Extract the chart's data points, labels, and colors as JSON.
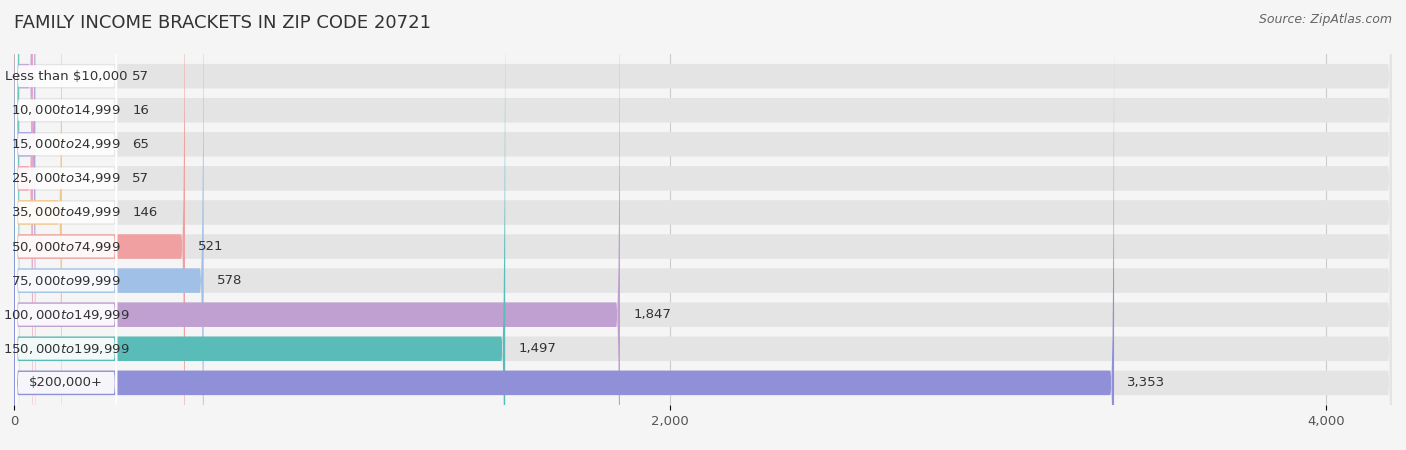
{
  "title": "FAMILY INCOME BRACKETS IN ZIP CODE 20721",
  "source": "Source: ZipAtlas.com",
  "categories": [
    "Less than $10,000",
    "$10,000 to $14,999",
    "$15,000 to $24,999",
    "$25,000 to $34,999",
    "$35,000 to $49,999",
    "$50,000 to $74,999",
    "$75,000 to $99,999",
    "$100,000 to $149,999",
    "$150,000 to $199,999",
    "$200,000+"
  ],
  "values": [
    57,
    16,
    65,
    57,
    146,
    521,
    578,
    1847,
    1497,
    3353
  ],
  "bar_colors": [
    "#c9a8d4",
    "#6ec8c4",
    "#a8a8e0",
    "#f5a0b5",
    "#f5c88a",
    "#f0a0a0",
    "#a0c0e8",
    "#c0a0d0",
    "#5abcb8",
    "#9090d8"
  ],
  "background_color": "#f5f5f5",
  "bar_background_color": "#e4e4e4",
  "label_bg_color": "#ffffff",
  "xmax": 4200,
  "xticks": [
    0,
    2000,
    4000
  ],
  "title_fontsize": 13,
  "label_fontsize": 9.5,
  "value_fontsize": 9.5,
  "source_fontsize": 9
}
